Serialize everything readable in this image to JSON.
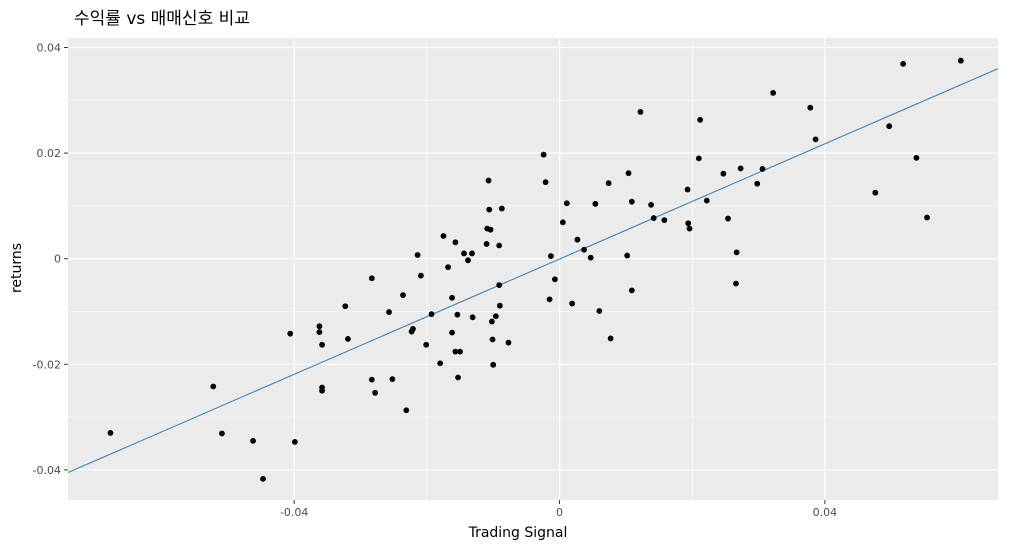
{
  "chart_data": {
    "type": "scatter",
    "title": "수익률 vs 매매신호 비교",
    "xlabel": "Trading Signal",
    "ylabel": "returns",
    "xlim": [
      -0.0741,
      0.0661
    ],
    "ylim": [
      -0.0457,
      0.0418
    ],
    "x_ticks": [
      -0.04,
      0,
      0.04
    ],
    "x_tick_labels": [
      "-0.04",
      "0",
      "0.04"
    ],
    "y_ticks": [
      -0.04,
      -0.02,
      0,
      0.02,
      0.04
    ],
    "y_tick_labels": [
      "-0.04",
      "-0.02",
      "0",
      "0.02",
      "0.04"
    ],
    "grid": true,
    "background": "#ebebeb",
    "gridline_color": "#ffffff",
    "point_color": "#000000",
    "fit_line": {
      "color": "#4682b4",
      "x": [
        -0.0741,
        0.0661
      ],
      "y": [
        -0.0405,
        0.036
      ]
    },
    "points": [
      [
        -0.0677,
        -0.033
      ],
      [
        -0.0522,
        -0.0242
      ],
      [
        -0.0509,
        -0.0331
      ],
      [
        -0.0462,
        -0.0345
      ],
      [
        -0.0447,
        -0.0417
      ],
      [
        -0.0406,
        -0.0142
      ],
      [
        -0.0399,
        -0.0347
      ],
      [
        -0.0362,
        -0.0128
      ],
      [
        -0.0362,
        -0.0139
      ],
      [
        -0.0358,
        -0.0163
      ],
      [
        -0.0358,
        -0.0244
      ],
      [
        -0.0358,
        -0.025
      ],
      [
        -0.0323,
        -0.009
      ],
      [
        -0.0319,
        -0.0152
      ],
      [
        -0.0283,
        -0.0037
      ],
      [
        -0.0283,
        -0.0229
      ],
      [
        -0.0278,
        -0.0254
      ],
      [
        -0.0257,
        -0.0101
      ],
      [
        -0.0252,
        -0.0228
      ],
      [
        -0.0236,
        -0.0069
      ],
      [
        -0.0231,
        -0.0287
      ],
      [
        -0.0223,
        -0.0138
      ],
      [
        -0.0221,
        -0.0133
      ],
      [
        -0.0214,
        0.0007
      ],
      [
        -0.0209,
        -0.0032
      ],
      [
        -0.0201,
        -0.0163
      ],
      [
        -0.0193,
        -0.0105
      ],
      [
        -0.018,
        -0.0198
      ],
      [
        -0.0175,
        0.0043
      ],
      [
        -0.0168,
        -0.0016
      ],
      [
        -0.0162,
        -0.0074
      ],
      [
        -0.0162,
        -0.014
      ],
      [
        -0.0157,
        0.0031
      ],
      [
        -0.0157,
        -0.0176
      ],
      [
        -0.0154,
        -0.0106
      ],
      [
        -0.0153,
        -0.0225
      ],
      [
        -0.015,
        -0.0176
      ],
      [
        -0.0144,
        0.001
      ],
      [
        -0.0138,
        -0.0003
      ],
      [
        -0.0132,
        0.001
      ],
      [
        -0.0131,
        -0.0111
      ],
      [
        -0.011,
        0.0028
      ],
      [
        -0.0109,
        0.0057
      ],
      [
        -0.0107,
        0.0148
      ],
      [
        -0.0106,
        0.0093
      ],
      [
        -0.0104,
        0.0055
      ],
      [
        -0.0102,
        -0.0119
      ],
      [
        -0.0101,
        -0.0153
      ],
      [
        -0.01,
        -0.0201
      ],
      [
        -0.0096,
        -0.0109
      ],
      [
        -0.0091,
        -0.005
      ],
      [
        -0.0091,
        0.0025
      ],
      [
        -0.009,
        -0.0089
      ],
      [
        -0.0087,
        0.0095
      ],
      [
        -0.0077,
        -0.0159
      ],
      [
        -0.0024,
        0.0197
      ],
      [
        -0.0021,
        0.0145
      ],
      [
        -0.0015,
        -0.0077
      ],
      [
        -0.0013,
        0.0005
      ],
      [
        -0.0007,
        -0.0039
      ],
      [
        0.0005,
        0.0069
      ],
      [
        0.0011,
        0.0105
      ],
      [
        0.0019,
        -0.0085
      ],
      [
        0.0027,
        0.0036
      ],
      [
        0.0037,
        0.0017
      ],
      [
        0.0047,
        0.0002
      ],
      [
        0.0054,
        0.0104
      ],
      [
        0.006,
        -0.0099
      ],
      [
        0.0074,
        0.0143
      ],
      [
        0.0077,
        -0.0151
      ],
      [
        0.0102,
        0.0006
      ],
      [
        0.0104,
        0.0162
      ],
      [
        0.0109,
        0.0108
      ],
      [
        0.0109,
        -0.006
      ],
      [
        0.0122,
        0.0278
      ],
      [
        0.0138,
        0.0102
      ],
      [
        0.0142,
        0.0077
      ],
      [
        0.0158,
        0.0073
      ],
      [
        0.0193,
        0.0131
      ],
      [
        0.0194,
        0.0067
      ],
      [
        0.0196,
        0.0057
      ],
      [
        0.021,
        0.019
      ],
      [
        0.0212,
        0.0263
      ],
      [
        0.0222,
        0.011
      ],
      [
        0.0247,
        0.0161
      ],
      [
        0.0254,
        0.0076
      ],
      [
        0.0267,
        0.0012
      ],
      [
        0.0266,
        -0.0047
      ],
      [
        0.0273,
        0.0171
      ],
      [
        0.0298,
        0.0142
      ],
      [
        0.0306,
        0.017
      ],
      [
        0.0322,
        0.0314
      ],
      [
        0.0378,
        0.0286
      ],
      [
        0.0386,
        0.0226
      ],
      [
        0.0476,
        0.0125
      ],
      [
        0.0497,
        0.0251
      ],
      [
        0.0518,
        0.0369
      ],
      [
        0.0538,
        0.0191
      ],
      [
        0.0554,
        0.0078
      ],
      [
        0.0605,
        0.0375
      ]
    ]
  }
}
